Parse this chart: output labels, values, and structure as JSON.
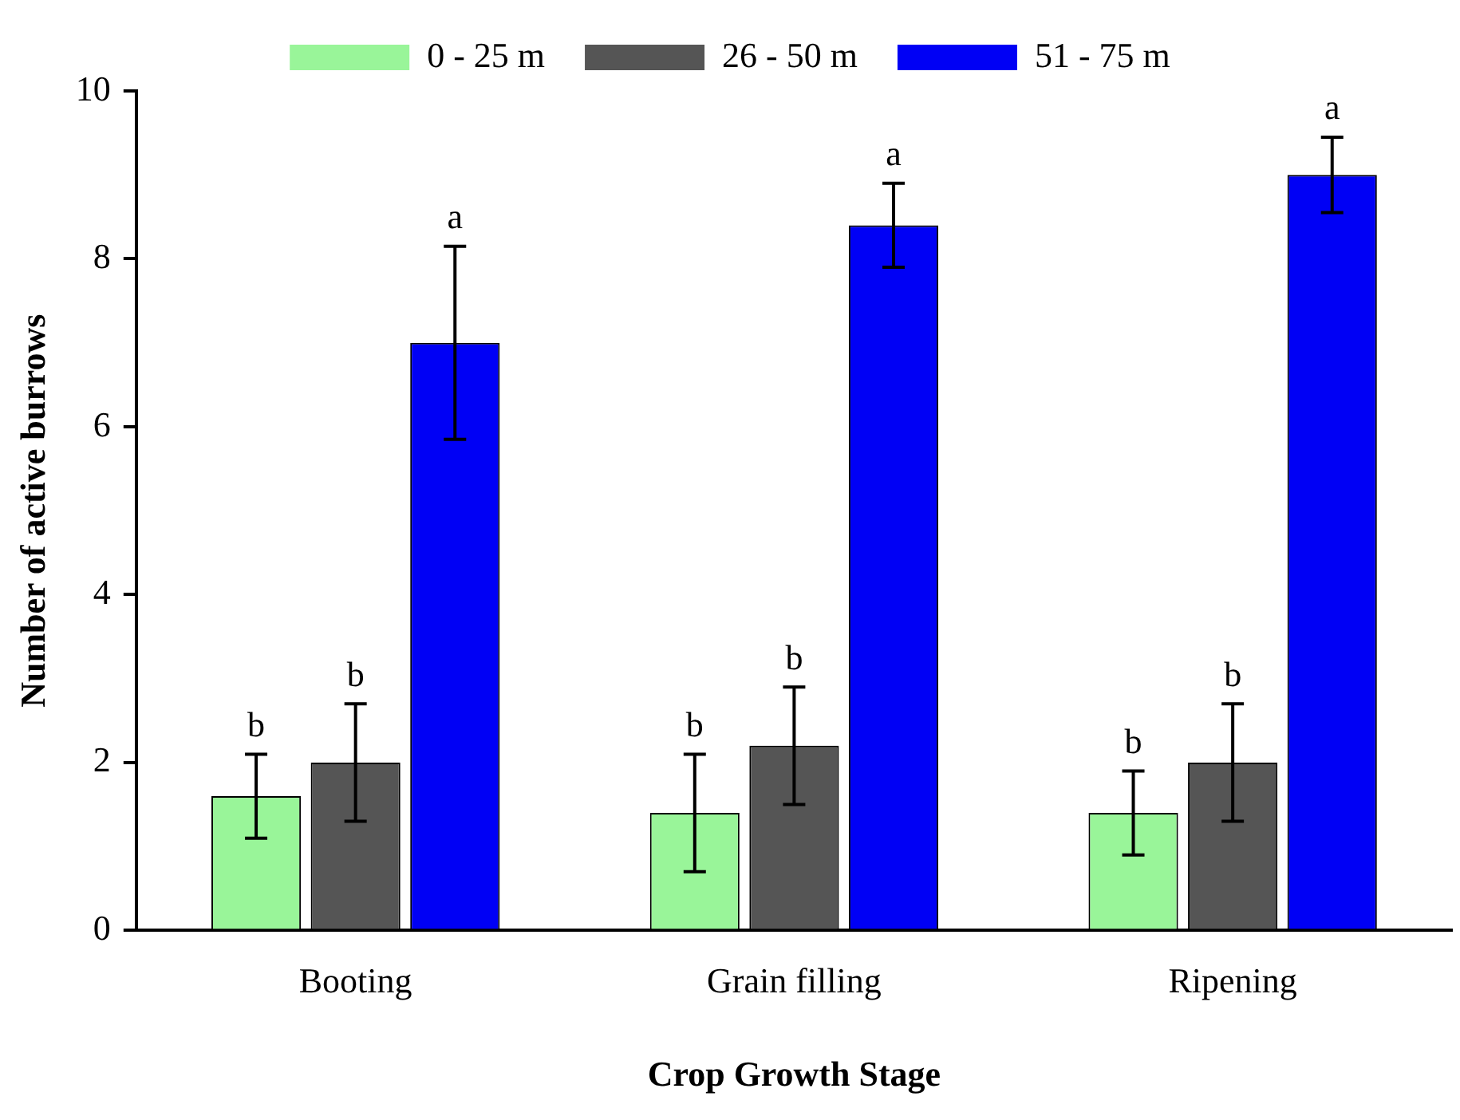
{
  "chart_data": {
    "type": "bar",
    "xlabel": "Crop Growth Stage",
    "ylabel": "Number of active burrows",
    "categories": [
      "Booting",
      "Grain filling",
      "Ripening"
    ],
    "series": [
      {
        "name": "0 - 25 m",
        "color": "#99f599",
        "values": [
          1.6,
          1.4,
          1.4
        ],
        "errors": [
          0.5,
          0.7,
          0.5
        ],
        "value_labels": [
          "b",
          "b",
          "b"
        ]
      },
      {
        "name": "26 - 50 m",
        "color": "#555555",
        "values": [
          2.0,
          2.2,
          2.0
        ],
        "errors": [
          0.7,
          0.7,
          0.7
        ],
        "value_labels": [
          "b",
          "b",
          "b"
        ]
      },
      {
        "name": "51 - 75 m",
        "color": "#0000f5",
        "values": [
          7.0,
          8.4,
          9.0
        ],
        "errors": [
          1.15,
          0.5,
          0.45
        ],
        "value_labels": [
          "a",
          "a",
          "a"
        ]
      }
    ],
    "ylim": [
      0,
      10
    ],
    "yticks": [
      0,
      2,
      4,
      6,
      8,
      10
    ],
    "grid": false,
    "legend": "top"
  }
}
